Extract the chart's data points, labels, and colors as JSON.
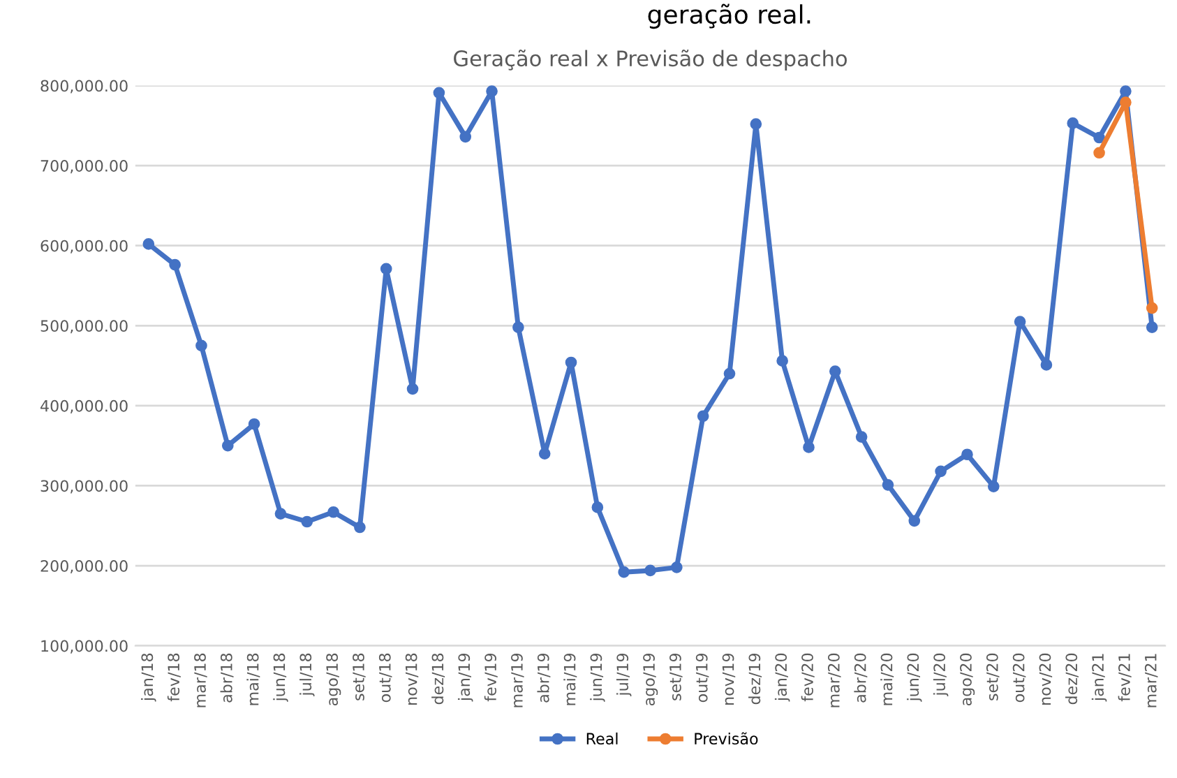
{
  "chart_data": {
    "type": "line",
    "title": "Geração real x Previsão de despacho",
    "annotations": [
      "geração real."
    ],
    "categories": [
      "jan/18",
      "fev/18",
      "mar/18",
      "abr/18",
      "mai/18",
      "jun/18",
      "jul/18",
      "ago/18",
      "set/18",
      "out/18",
      "nov/18",
      "dez/18",
      "jan/19",
      "fev/19",
      "mar/19",
      "abr/19",
      "mai/19",
      "jun/19",
      "jul/19",
      "ago/19",
      "set/19",
      "out/19",
      "nov/19",
      "dez/19",
      "jan/20",
      "fev/20",
      "mar/20",
      "abr/20",
      "mai/20",
      "jun/20",
      "jul/20",
      "ago/20",
      "set/20",
      "out/20",
      "nov/20",
      "dez/20",
      "jan/21",
      "fev/21",
      "mar/21"
    ],
    "series": [
      {
        "name": "Real",
        "color": "#4472c4",
        "values": [
          602000,
          576000,
          475000,
          350000,
          377000,
          265000,
          255000,
          267000,
          248000,
          571000,
          421000,
          791000,
          736000,
          793000,
          498000,
          340000,
          454000,
          273000,
          192000,
          194000,
          198000,
          387000,
          440000,
          752000,
          456000,
          348000,
          443000,
          361000,
          301000,
          256000,
          318000,
          339000,
          299000,
          505000,
          451000,
          753000,
          735000,
          793000,
          498000
        ]
      },
      {
        "name": "Previsão",
        "color": "#ed7d31",
        "values": [
          null,
          null,
          null,
          null,
          null,
          null,
          null,
          null,
          null,
          null,
          null,
          null,
          null,
          null,
          null,
          null,
          null,
          null,
          null,
          null,
          null,
          null,
          null,
          null,
          null,
          null,
          null,
          null,
          null,
          null,
          null,
          null,
          null,
          null,
          null,
          null,
          716000,
          779000,
          522000
        ]
      }
    ],
    "ylim": [
      100000,
      800000
    ],
    "yticks": [
      {
        "value": 100000,
        "label": "100,000.00"
      },
      {
        "value": 200000,
        "label": "200,000.00"
      },
      {
        "value": 300000,
        "label": "300,000.00"
      },
      {
        "value": 400000,
        "label": "400,000.00"
      },
      {
        "value": 500000,
        "label": "500,000.00"
      },
      {
        "value": 600000,
        "label": "600,000.00"
      },
      {
        "value": 700000,
        "label": "700,000.00"
      },
      {
        "value": 800000,
        "label": "800,000.00"
      }
    ],
    "grid": "y",
    "legend": "bottom",
    "marker": "circle",
    "line_style": "solid"
  }
}
